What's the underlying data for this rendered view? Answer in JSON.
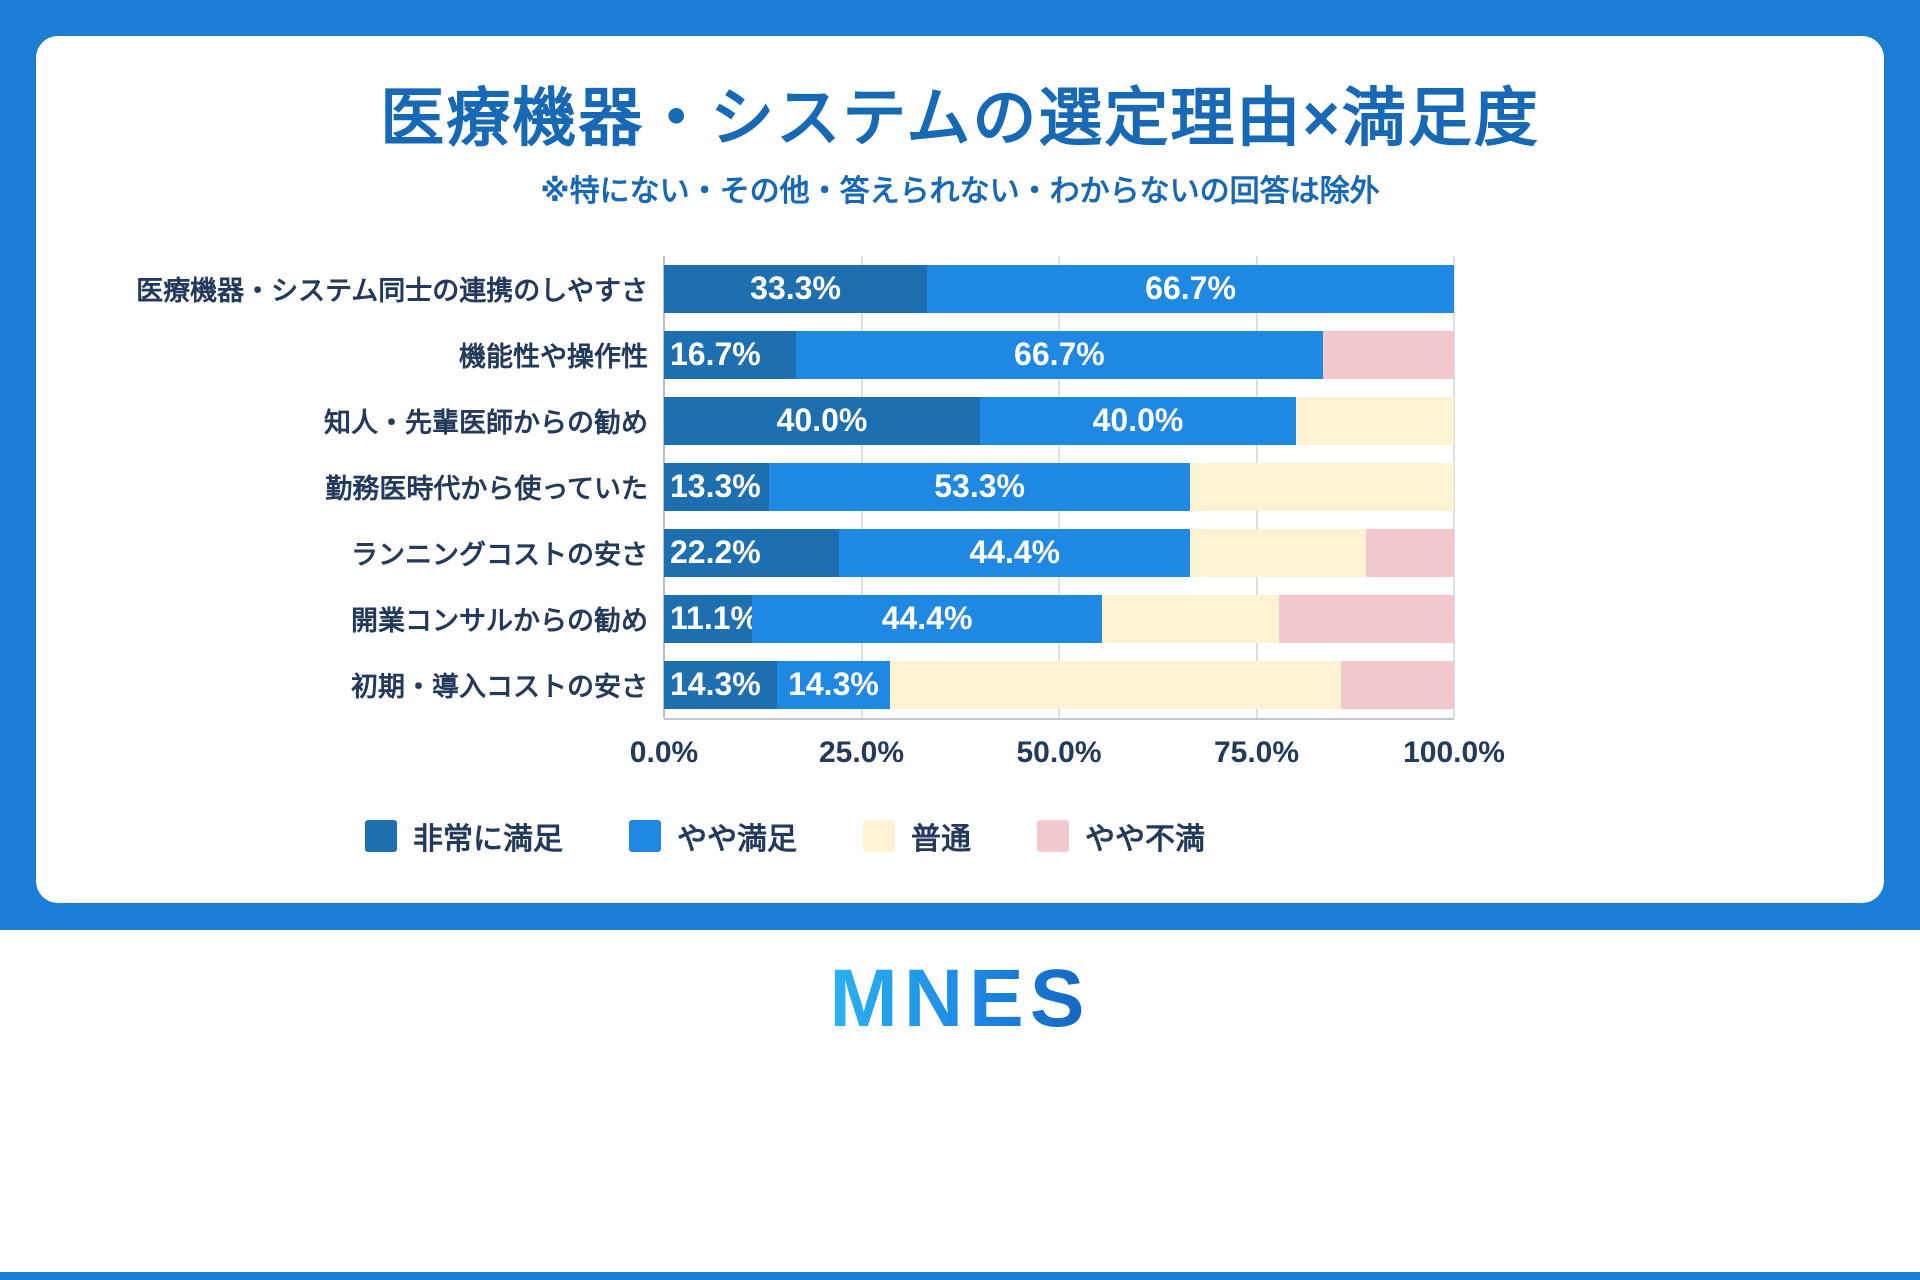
{
  "page": {
    "logo_text": "MNES"
  },
  "colors": {
    "frame_blue": "#1a7fd4",
    "title_blue": "#1769b5",
    "text_navy": "#233a5c",
    "very_satisfied": "#1d6fb0",
    "somewhat_satisfied": "#1e88e3",
    "neutral": "#fdf2d2",
    "somewhat_dissatisfied": "#f2c8ce"
  },
  "chart_data": {
    "type": "bar",
    "orientation": "horizontal",
    "stacked": true,
    "title": "医療機器・システムの選定理由×満足度",
    "subtitle": "※特にない・その他・答えられない・わからないの回答は除外",
    "categories": [
      "医療機器・システム同士の連携のしやすさ",
      "機能性や操作性",
      "知人・先輩医師からの勧め",
      "勤務医時代から使っていた",
      "ランニングコストの安さ",
      "開業コンサルからの勧め",
      "初期・導入コストの安さ"
    ],
    "series": [
      {
        "name": "非常に満足",
        "color": "#1d6fb0",
        "values": [
          33.3,
          16.7,
          40.0,
          13.3,
          22.2,
          11.1,
          14.3
        ],
        "labels": [
          "33.3%",
          "16.7%",
          "40.0%",
          "13.3%",
          "22.2%",
          "11.1%",
          "14.3%"
        ],
        "show_labels": true
      },
      {
        "name": "やや満足",
        "color": "#1e88e3",
        "values": [
          66.7,
          66.7,
          40.0,
          53.3,
          44.4,
          44.4,
          14.3
        ],
        "labels": [
          "66.7%",
          "66.7%",
          "40.0%",
          "53.3%",
          "44.4%",
          "44.4%",
          "14.3%"
        ],
        "show_labels": true
      },
      {
        "name": "普通",
        "color": "#fdf2d2",
        "values": [
          0,
          0,
          20.0,
          33.4,
          22.2,
          22.3,
          57.1
        ],
        "labels": [],
        "show_labels": false
      },
      {
        "name": "やや不満",
        "color": "#f2c8ce",
        "values": [
          0,
          16.6,
          0,
          0,
          11.2,
          22.2,
          14.3
        ],
        "labels": [],
        "show_labels": false
      }
    ],
    "x_ticks": [
      {
        "value": 0,
        "label": "0.0%"
      },
      {
        "value": 25,
        "label": "25.0%"
      },
      {
        "value": 50,
        "label": "50.0%"
      },
      {
        "value": 75,
        "label": "75.0%"
      },
      {
        "value": 100,
        "label": "100.0%"
      }
    ],
    "xlim": [
      0,
      100
    ],
    "grid": "vertical",
    "legend_position": "bottom"
  }
}
